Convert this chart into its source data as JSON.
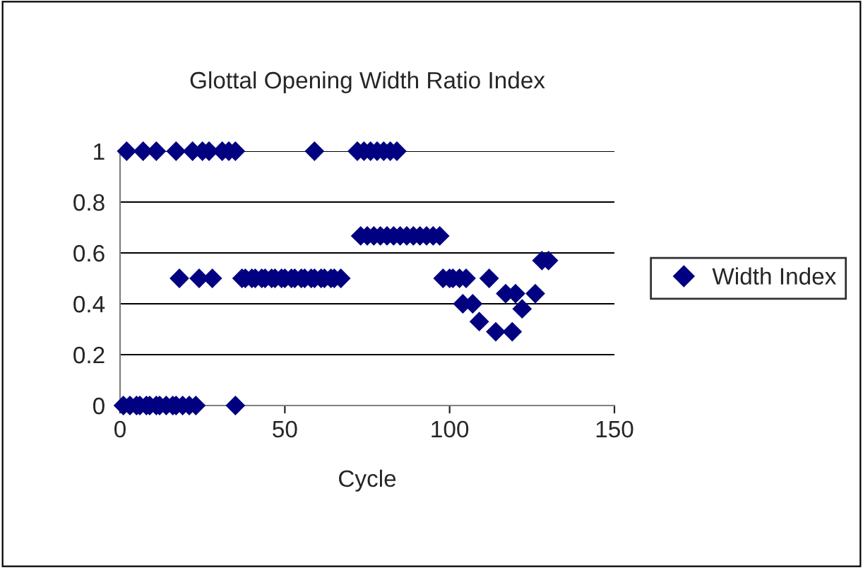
{
  "chart_data": {
    "type": "scatter",
    "title": "Glottal Opening Width Ratio Index",
    "xlabel": "Cycle",
    "xlim": [
      0,
      150
    ],
    "xticks": [
      0,
      50,
      100,
      150
    ],
    "ylim": [
      0,
      1
    ],
    "yticks": [
      0,
      0.2,
      0.4,
      0.6,
      0.8,
      1
    ],
    "grid": "y",
    "legend": "right",
    "marker": "diamond",
    "series": [
      {
        "name": "Width Index",
        "color": "#000080",
        "x": [
          2,
          7,
          11,
          17,
          22,
          25,
          27,
          31,
          33,
          35,
          59,
          72,
          74,
          76,
          78,
          80,
          82,
          84,
          1,
          3,
          5,
          6,
          8,
          9,
          11,
          12,
          14,
          16,
          17,
          19,
          21,
          23,
          35,
          18,
          24,
          28,
          37,
          38,
          40,
          41,
          43,
          44,
          46,
          47,
          49,
          50,
          52,
          53,
          55,
          56,
          58,
          59,
          61,
          62,
          64,
          65,
          67,
          73,
          75,
          77,
          79,
          81,
          83,
          85,
          87,
          89,
          91,
          93,
          95,
          97,
          98,
          100,
          101,
          103,
          105,
          112,
          107,
          104,
          117,
          120,
          126,
          122,
          109,
          114,
          119,
          128,
          130
        ],
        "values": [
          1,
          1,
          1,
          1,
          1,
          1,
          1,
          1,
          1,
          1,
          1,
          1,
          1,
          1,
          1,
          1,
          1,
          1,
          0,
          0,
          0,
          0,
          0,
          0,
          0,
          0,
          0,
          0,
          0,
          0,
          0,
          0,
          0,
          0.5,
          0.5,
          0.5,
          0.5,
          0.5,
          0.5,
          0.5,
          0.5,
          0.5,
          0.5,
          0.5,
          0.5,
          0.5,
          0.5,
          0.5,
          0.5,
          0.5,
          0.5,
          0.5,
          0.5,
          0.5,
          0.5,
          0.5,
          0.5,
          0.667,
          0.667,
          0.667,
          0.667,
          0.667,
          0.667,
          0.667,
          0.667,
          0.667,
          0.667,
          0.667,
          0.667,
          0.667,
          0.5,
          0.5,
          0.5,
          0.5,
          0.5,
          0.5,
          0.4,
          0.4,
          0.44,
          0.44,
          0.44,
          0.38,
          0.33,
          0.29,
          0.29,
          0.57,
          0.57
        ]
      }
    ]
  }
}
